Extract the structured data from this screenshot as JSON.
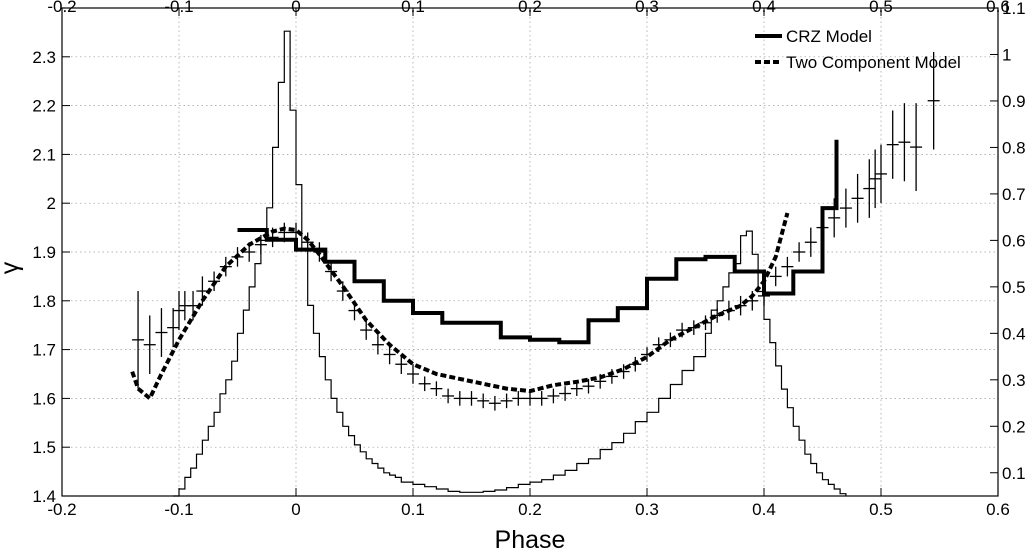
{
  "chart_data": {
    "type": "line",
    "title": "",
    "xlabel": "Phase",
    "ylabel": "γ",
    "xlim": [
      -0.2,
      0.6
    ],
    "ylim": [
      1.4,
      2.4
    ],
    "y2lim": [
      0.05,
      1.1
    ],
    "x_ticks": [
      "-0.2",
      "-0.1",
      "0",
      "0.1",
      "0.2",
      "0.3",
      "0.4",
      "0.5",
      "0.6"
    ],
    "y_ticks": [
      "1.4",
      "1.5",
      "1.6",
      "1.7",
      "1.8",
      "1.9",
      "2",
      "2.1",
      "2.2",
      "2.3"
    ],
    "y2_ticks": [
      "0.1",
      "0.2",
      "0.3",
      "0.4",
      "0.5",
      "0.6",
      "0.7",
      "0.8",
      "0.9",
      "1",
      "1.1"
    ],
    "grid": true,
    "legend_position": "top-right",
    "series": [
      {
        "name": "CRZ Model",
        "kind": "step",
        "style": "solid-thick",
        "x": [
          -0.05,
          -0.025,
          0.0,
          0.025,
          0.05,
          0.075,
          0.1,
          0.125,
          0.15,
          0.175,
          0.2,
          0.225,
          0.25,
          0.275,
          0.3,
          0.325,
          0.35,
          0.375,
          0.4,
          0.425,
          0.45,
          0.462
        ],
        "y": [
          1.945,
          1.925,
          1.905,
          1.88,
          1.84,
          1.8,
          1.775,
          1.755,
          1.755,
          1.725,
          1.72,
          1.715,
          1.76,
          1.785,
          1.845,
          1.885,
          1.89,
          1.86,
          1.815,
          1.86,
          1.99,
          2.13
        ]
      },
      {
        "name": "Two Component Model",
        "kind": "line",
        "style": "dashed-thick",
        "x": [
          -0.14,
          -0.135,
          -0.125,
          -0.115,
          -0.1,
          -0.08,
          -0.06,
          -0.04,
          -0.02,
          -0.01,
          0.0,
          0.01,
          0.02,
          0.04,
          0.06,
          0.08,
          0.1,
          0.12,
          0.14,
          0.16,
          0.18,
          0.2,
          0.22,
          0.24,
          0.26,
          0.28,
          0.3,
          0.32,
          0.34,
          0.36,
          0.38,
          0.39,
          0.4,
          0.41,
          0.42
        ],
        "y": [
          1.655,
          1.62,
          1.6,
          1.65,
          1.72,
          1.8,
          1.87,
          1.915,
          1.942,
          1.948,
          1.945,
          1.925,
          1.895,
          1.83,
          1.76,
          1.71,
          1.67,
          1.65,
          1.64,
          1.63,
          1.62,
          1.615,
          1.627,
          1.634,
          1.643,
          1.66,
          1.685,
          1.72,
          1.745,
          1.77,
          1.79,
          1.81,
          1.84,
          1.89,
          1.98
        ]
      },
      {
        "name": "",
        "kind": "errorbar",
        "style": "cross",
        "x": [
          -0.135,
          -0.125,
          -0.115,
          -0.105,
          -0.1,
          -0.095,
          -0.088,
          -0.08,
          -0.07,
          -0.06,
          -0.05,
          -0.04,
          -0.03,
          -0.02,
          -0.01,
          0.0,
          0.01,
          0.02,
          0.03,
          0.04,
          0.05,
          0.06,
          0.07,
          0.08,
          0.09,
          0.1,
          0.11,
          0.12,
          0.13,
          0.14,
          0.15,
          0.16,
          0.17,
          0.18,
          0.19,
          0.2,
          0.21,
          0.22,
          0.23,
          0.24,
          0.25,
          0.26,
          0.27,
          0.28,
          0.29,
          0.3,
          0.31,
          0.32,
          0.33,
          0.34,
          0.35,
          0.36,
          0.37,
          0.38,
          0.39,
          0.4,
          0.41,
          0.42,
          0.43,
          0.44,
          0.45,
          0.46,
          0.47,
          0.48,
          0.49,
          0.495,
          0.5,
          0.51,
          0.52,
          0.53,
          0.545
        ],
        "y": [
          1.72,
          1.71,
          1.735,
          1.745,
          1.78,
          1.79,
          1.79,
          1.82,
          1.84,
          1.87,
          1.89,
          1.9,
          1.915,
          1.93,
          1.94,
          1.94,
          1.92,
          1.9,
          1.86,
          1.82,
          1.78,
          1.74,
          1.71,
          1.69,
          1.67,
          1.65,
          1.63,
          1.62,
          1.605,
          1.6,
          1.6,
          1.595,
          1.59,
          1.595,
          1.6,
          1.6,
          1.6,
          1.605,
          1.61,
          1.62,
          1.625,
          1.635,
          1.645,
          1.655,
          1.67,
          1.69,
          1.71,
          1.72,
          1.74,
          1.745,
          1.755,
          1.77,
          1.78,
          1.79,
          1.8,
          1.81,
          1.85,
          1.87,
          1.9,
          1.92,
          1.95,
          1.97,
          1.99,
          2.01,
          2.03,
          2.05,
          2.06,
          2.12,
          2.125,
          2.115,
          2.21
        ],
        "yerr": [
          0.1,
          0.06,
          0.05,
          0.04,
          0.04,
          0.03,
          0.03,
          0.03,
          0.02,
          0.02,
          0.02,
          0.02,
          0.02,
          0.02,
          0.02,
          0.02,
          0.02,
          0.02,
          0.02,
          0.02,
          0.02,
          0.02,
          0.02,
          0.02,
          0.02,
          0.02,
          0.015,
          0.015,
          0.015,
          0.015,
          0.015,
          0.015,
          0.015,
          0.015,
          0.015,
          0.015,
          0.015,
          0.015,
          0.015,
          0.015,
          0.015,
          0.015,
          0.015,
          0.015,
          0.015,
          0.015,
          0.015,
          0.015,
          0.015,
          0.015,
          0.015,
          0.015,
          0.02,
          0.02,
          0.02,
          0.02,
          0.02,
          0.02,
          0.02,
          0.03,
          0.03,
          0.04,
          0.04,
          0.05,
          0.06,
          0.06,
          0.06,
          0.07,
          0.08,
          0.09,
          0.1
        ]
      },
      {
        "name": "",
        "kind": "step",
        "style": "solid-thin",
        "axis": "right",
        "x": [
          -0.105,
          -0.1,
          -0.095,
          -0.09,
          -0.085,
          -0.08,
          -0.075,
          -0.07,
          -0.065,
          -0.06,
          -0.055,
          -0.05,
          -0.045,
          -0.04,
          -0.035,
          -0.03,
          -0.025,
          -0.02,
          -0.015,
          -0.01,
          -0.005,
          0.0,
          0.005,
          0.01,
          0.015,
          0.02,
          0.025,
          0.03,
          0.035,
          0.04,
          0.045,
          0.05,
          0.055,
          0.06,
          0.065,
          0.07,
          0.075,
          0.08,
          0.085,
          0.09,
          0.1,
          0.11,
          0.12,
          0.13,
          0.14,
          0.15,
          0.16,
          0.17,
          0.18,
          0.19,
          0.2,
          0.21,
          0.22,
          0.23,
          0.24,
          0.25,
          0.26,
          0.27,
          0.28,
          0.29,
          0.3,
          0.31,
          0.32,
          0.33,
          0.34,
          0.35,
          0.355,
          0.36,
          0.365,
          0.37,
          0.375,
          0.38,
          0.385,
          0.39,
          0.395,
          0.4,
          0.405,
          0.41,
          0.415,
          0.42,
          0.425,
          0.43,
          0.435,
          0.44,
          0.445,
          0.45,
          0.455,
          0.46,
          0.465,
          0.47
        ],
        "y": [
          0.05,
          0.065,
          0.09,
          0.11,
          0.14,
          0.17,
          0.2,
          0.23,
          0.27,
          0.3,
          0.34,
          0.4,
          0.45,
          0.5,
          0.55,
          0.6,
          0.67,
          0.8,
          0.94,
          1.05,
          0.88,
          0.72,
          0.58,
          0.46,
          0.4,
          0.35,
          0.3,
          0.26,
          0.23,
          0.2,
          0.18,
          0.16,
          0.145,
          0.13,
          0.12,
          0.11,
          0.1,
          0.095,
          0.09,
          0.08,
          0.075,
          0.07,
          0.065,
          0.06,
          0.058,
          0.058,
          0.06,
          0.063,
          0.068,
          0.075,
          0.08,
          0.085,
          0.095,
          0.105,
          0.12,
          0.13,
          0.15,
          0.165,
          0.185,
          0.21,
          0.23,
          0.26,
          0.29,
          0.32,
          0.35,
          0.4,
          0.45,
          0.47,
          0.5,
          0.53,
          0.55,
          0.61,
          0.62,
          0.57,
          0.49,
          0.43,
          0.38,
          0.33,
          0.28,
          0.24,
          0.2,
          0.17,
          0.14,
          0.12,
          0.1,
          0.085,
          0.075,
          0.065,
          0.055,
          0.05
        ]
      }
    ]
  }
}
